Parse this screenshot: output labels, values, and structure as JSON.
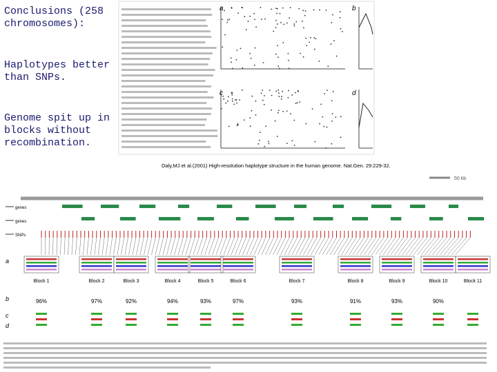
{
  "slide": {
    "notes": [
      "Conclusions (258 chromosomes):",
      "Haplotypes better than SNPs.",
      "Genome spit up in blocks without recombination."
    ]
  },
  "figure1": {
    "panels": [
      "a",
      "b",
      "c",
      "d"
    ]
  },
  "citation": "Daly,MJ et al.(2001) High-resolution haplotype structure in the human genome. Nat.Gen. 29:229-32.",
  "figure2": {
    "scale": "50 kb",
    "track_labels": [
      "genes",
      "genes",
      "SNPs"
    ],
    "row_labels": [
      "a",
      "b",
      "c",
      "d"
    ],
    "blocks": [
      "Block 1",
      "Block 2",
      "Block 3",
      "Block 4",
      "Block 5",
      "Block 6",
      "Block 7",
      "Block 8",
      "Block 9",
      "Block 10",
      "Block 11"
    ],
    "coverage": [
      "96%",
      "97%",
      "92%",
      "94%",
      "93%",
      "97%",
      "93%",
      "91%",
      "93%",
      "90%"
    ]
  }
}
